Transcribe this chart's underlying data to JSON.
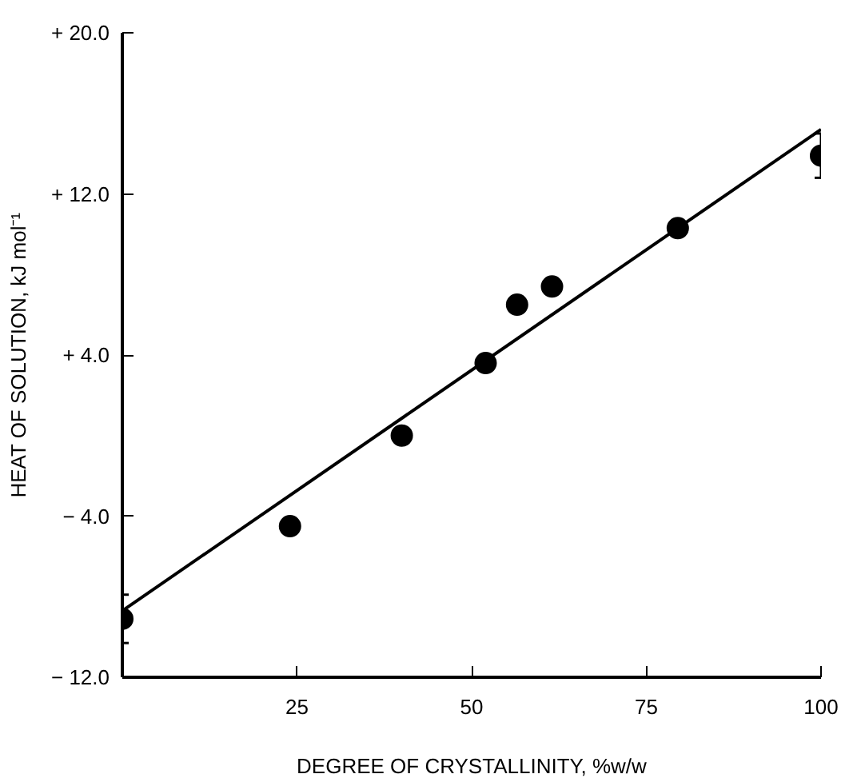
{
  "chart_data": {
    "type": "scatter",
    "xlabel": "DEGREE OF CRYSTALLINITY, %w/w",
    "ylabel": "HEAT OF SOLUTION, kJ mol⁻¹",
    "xlim": [
      0,
      100
    ],
    "xticks": [
      25,
      50,
      75,
      100
    ],
    "ylim": [
      -12,
      20
    ],
    "yticks": [
      {
        "value": 20,
        "label": "+ 20.0"
      },
      {
        "value": 12,
        "label": "+ 12.0"
      },
      {
        "value": 4,
        "label": "+ 4.0"
      },
      {
        "value": -4,
        "label": "− 4.0"
      },
      {
        "value": -12,
        "label": "− 12.0"
      }
    ],
    "grid": false,
    "series": [
      {
        "marker": "circle",
        "color": "#000000",
        "x": [
          0,
          24,
          40,
          52,
          56.5,
          61.5,
          79.5,
          100
        ],
        "values": [
          -9.1,
          -4.5,
          0.0,
          3.6,
          6.5,
          7.4,
          10.3,
          13.9
        ],
        "errors": [
          1.2,
          null,
          null,
          null,
          null,
          null,
          null,
          1.1
        ]
      },
      {
        "type": "line",
        "color": "#000000",
        "x": [
          0,
          100
        ],
        "values": [
          -8.7,
          15.2
        ],
        "line_style": "solid"
      }
    ]
  }
}
